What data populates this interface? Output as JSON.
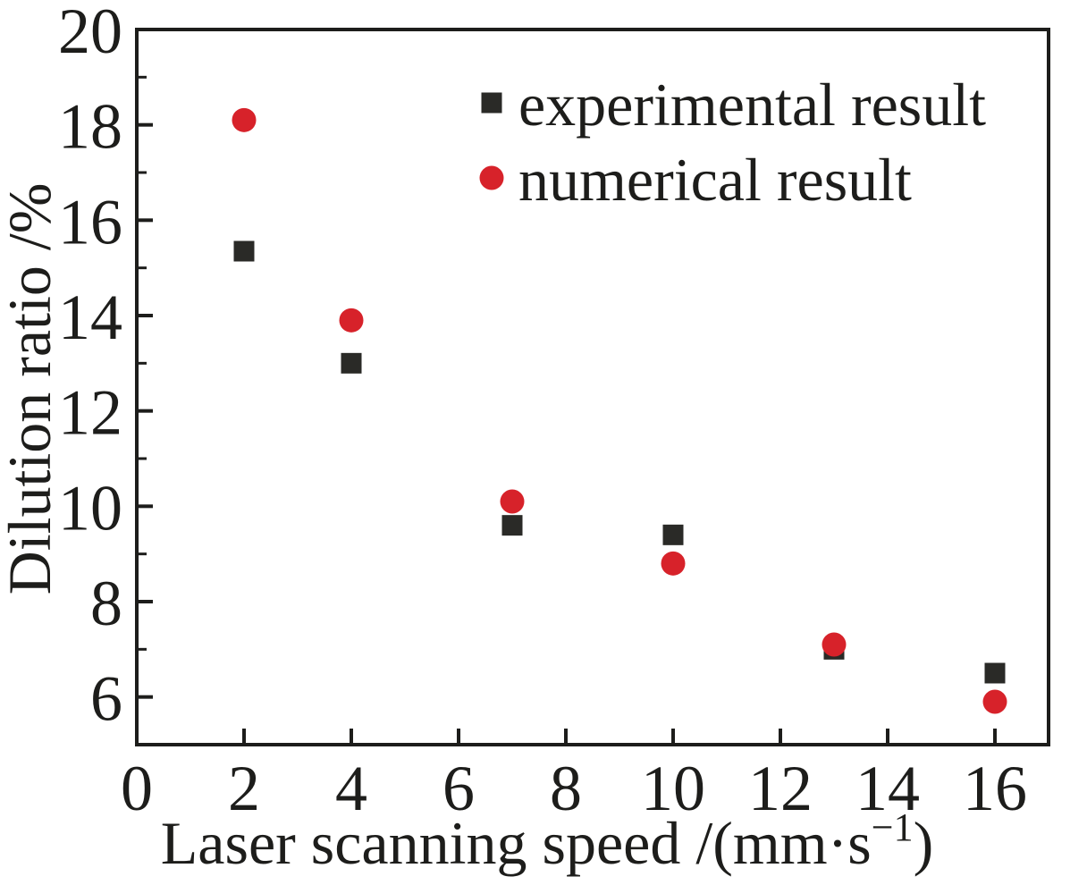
{
  "figure": {
    "background": "#ffffff",
    "axis_color": "#1d1d1b"
  },
  "chart_data": {
    "type": "scatter",
    "title": "",
    "xlabel": "Laser scanning speed /(mm·s⁻¹)",
    "xlabel_parts": {
      "main": "Laser scanning speed /(mm·s",
      "sup": "−1",
      "close": ")"
    },
    "ylabel": "Dilution ratio /%",
    "xlim": [
      0,
      17
    ],
    "ylim": [
      5,
      20
    ],
    "x_ticks": [
      0,
      2,
      4,
      6,
      8,
      10,
      12,
      14,
      16
    ],
    "y_ticks": [
      6,
      8,
      10,
      12,
      14,
      16,
      18,
      20
    ],
    "y_minor_ticks": [
      7,
      9,
      11,
      13,
      15,
      17,
      19
    ],
    "grid": false,
    "legend_position": "top-right",
    "series": [
      {
        "name": "experimental result",
        "marker": "square",
        "color": "#2a2a27",
        "x": [
          2,
          4,
          7,
          10,
          13,
          16
        ],
        "y": [
          15.35,
          13.0,
          9.6,
          9.4,
          7.0,
          6.5
        ]
      },
      {
        "name": "numerical result",
        "marker": "circle",
        "color": "#d7222a",
        "x": [
          2,
          4,
          7,
          10,
          13,
          16
        ],
        "y": [
          18.1,
          13.9,
          10.1,
          8.8,
          7.1,
          5.9
        ]
      }
    ]
  }
}
